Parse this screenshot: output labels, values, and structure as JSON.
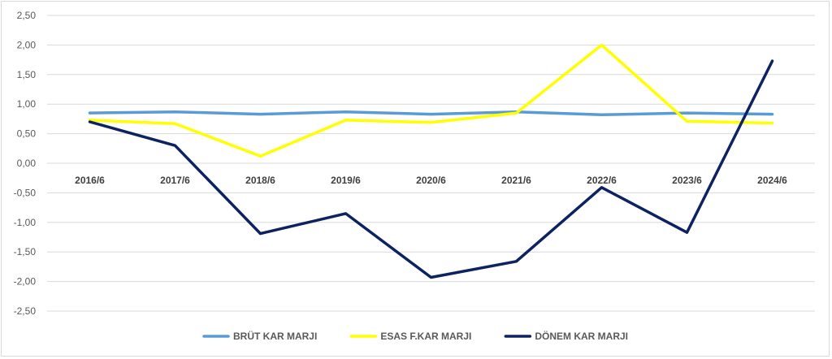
{
  "chart_data": {
    "type": "line",
    "title": "",
    "xlabel": "",
    "ylabel": "",
    "categories": [
      "2016/6",
      "2017/6",
      "2018/6",
      "2019/6",
      "2020/6",
      "2021/6",
      "2022/6",
      "2023/6",
      "2024/6"
    ],
    "ylim": [
      -2.5,
      2.5
    ],
    "ytick_step": 0.5,
    "ytick_labels": [
      "2,50",
      "2,00",
      "1,50",
      "1,00",
      "0,50",
      "0,00",
      "-0,50",
      "-1,00",
      "-1,50",
      "-2,00",
      "-2,50"
    ],
    "grid": true,
    "legend_position": "bottom",
    "series": [
      {
        "name": "BRÜT KAR MARJI",
        "color": "#5b9bd5",
        "values": [
          0.85,
          0.87,
          0.83,
          0.87,
          0.83,
          0.87,
          0.82,
          0.85,
          0.83
        ]
      },
      {
        "name": "ESAS F.KAR MARJI",
        "color": "#ffff00",
        "values": [
          0.73,
          0.67,
          0.12,
          0.73,
          0.69,
          0.85,
          2.0,
          0.71,
          0.68
        ]
      },
      {
        "name": "DÖNEM KAR MARJI",
        "color": "#0d2260",
        "values": [
          0.7,
          0.3,
          -1.19,
          -0.85,
          -1.93,
          -1.66,
          -0.41,
          -1.17,
          1.73
        ]
      }
    ]
  }
}
